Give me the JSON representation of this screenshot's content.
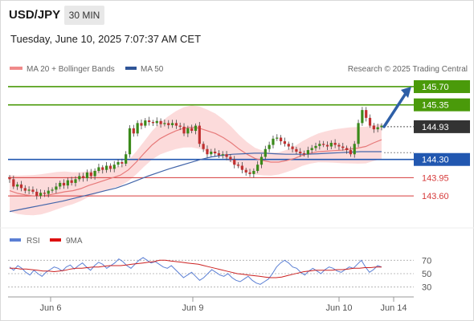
{
  "header": {
    "symbol": "USD/JPY",
    "interval": "30 MIN",
    "datetime": "Tuesday, June 10, 2025 7:07:37 AM CET"
  },
  "legend": {
    "ma20_label": "MA 20 + Bollinger Bands",
    "ma50_label": "MA 50",
    "credit": "Research © 2025 Trading Central",
    "rsi_label": "RSI",
    "rsi9ma_label": "9MA"
  },
  "colors": {
    "green": "#4a9a0a",
    "blue": "#2157b0",
    "red": "#d63a3a",
    "dark": "#333333",
    "band": "#fbd5d5",
    "arrow": "#2e5fa7",
    "ma20": "#e77a7a",
    "ma50": "#4466aa",
    "candle_up": "#3a8a1a",
    "candle_down": "#c03030",
    "rsi": "#5b7fd4",
    "rsi_ma": "#cc2020"
  },
  "chart_data": {
    "type": "candlestick",
    "price_range": [
      143.0,
      145.9
    ],
    "levels": [
      {
        "value": 145.7,
        "label": "145.70",
        "style": "green-box"
      },
      {
        "value": 145.35,
        "label": "145.35",
        "style": "green-box"
      },
      {
        "value": 144.93,
        "label": "144.93",
        "style": "dark-box"
      },
      {
        "value": 144.3,
        "label": "144.30",
        "style": "blue-box"
      },
      {
        "value": 143.95,
        "label": "143.95",
        "style": "red-text"
      },
      {
        "value": 143.6,
        "label": "143.60",
        "style": "red-text"
      }
    ],
    "x_labels": [
      "Jun 6",
      "Jun 9",
      "Jun 10",
      "Jun 14"
    ],
    "close": [
      143.92,
      143.78,
      143.82,
      143.75,
      143.7,
      143.72,
      143.68,
      143.6,
      143.66,
      143.64,
      143.7,
      143.72,
      143.78,
      143.85,
      143.8,
      143.9,
      143.85,
      143.92,
      143.98,
      143.94,
      144.05,
      143.98,
      144.08,
      144.15,
      144.1,
      144.18,
      144.12,
      144.2,
      144.25,
      144.22,
      144.4,
      144.9,
      144.8,
      145.0,
      144.95,
      145.05,
      145.02,
      145.0,
      145.04,
      144.98,
      145.0,
      144.96,
      145.0,
      144.95,
      144.93,
      144.8,
      144.9,
      144.85,
      144.95,
      144.6,
      144.5,
      144.4,
      144.45,
      144.42,
      144.38,
      144.4,
      144.35,
      144.3,
      144.2,
      144.18,
      144.1,
      144.05,
      144.02,
      144.08,
      144.2,
      144.35,
      144.5,
      144.58,
      144.7,
      144.72,
      144.65,
      144.6,
      144.55,
      144.5,
      144.45,
      144.42,
      144.4,
      144.48,
      144.52,
      144.56,
      144.6,
      144.58,
      144.55,
      144.62,
      144.58,
      144.55,
      144.52,
      144.48,
      144.4,
      144.6,
      145.0,
      145.25,
      145.1,
      144.95,
      144.88,
      144.92,
      144.95
    ],
    "ma20": [
      143.7,
      143.65,
      143.62,
      143.6,
      143.6,
      143.62,
      143.65,
      143.68,
      143.7,
      143.74,
      143.8,
      143.85,
      143.9,
      143.95,
      144.0,
      144.1,
      144.25,
      144.42,
      144.58,
      144.7,
      144.78,
      144.85,
      144.9,
      144.92,
      144.9,
      144.85,
      144.8,
      144.72,
      144.62,
      144.5,
      144.4,
      144.32,
      144.28,
      144.25,
      144.25,
      144.28,
      144.32,
      144.38,
      144.42,
      144.45,
      144.46,
      144.47,
      144.48,
      144.5,
      144.52,
      144.55,
      144.62,
      144.68
    ],
    "ma50": [
      143.3,
      143.34,
      143.38,
      143.42,
      143.46,
      143.5,
      143.55,
      143.6,
      143.65,
      143.7,
      143.75,
      143.82,
      143.9,
      143.98,
      144.05,
      144.12,
      144.18,
      144.24,
      144.3,
      144.35,
      144.38,
      144.4,
      144.41,
      144.42,
      144.42,
      144.41,
      144.4,
      144.4,
      144.4,
      144.41,
      144.42,
      144.43,
      144.44,
      144.45,
      144.45,
      144.45
    ],
    "rsi_range": [
      20,
      80
    ],
    "rsi_ticks": [
      70,
      50,
      30
    ],
    "rsi": [
      60,
      55,
      62,
      58,
      52,
      48,
      55,
      50,
      46,
      52,
      56,
      60,
      58,
      54,
      60,
      63,
      57,
      62,
      66,
      60,
      55,
      62,
      67,
      64,
      58,
      62,
      66,
      72,
      68,
      62,
      58,
      64,
      70,
      74,
      70,
      66,
      68,
      64,
      60,
      58,
      62,
      56,
      50,
      44,
      48,
      52,
      46,
      40,
      44,
      50,
      56,
      52,
      48,
      46,
      50,
      44,
      40,
      38,
      42,
      46,
      40,
      36,
      34,
      38,
      42,
      50,
      60,
      66,
      70,
      66,
      60,
      58,
      52,
      48,
      54,
      58,
      54,
      50,
      56,
      60,
      58,
      54,
      52,
      56,
      60,
      58,
      64,
      70,
      60,
      52,
      56,
      62,
      60
    ],
    "rsi_ma": [
      58,
      58,
      57,
      57,
      56,
      55,
      54,
      54,
      53,
      54,
      55,
      57,
      58,
      58,
      59,
      60,
      60,
      61,
      62,
      62,
      62,
      63,
      64,
      65,
      66,
      67,
      68,
      70,
      70,
      69,
      68,
      67,
      66,
      65,
      64,
      62,
      60,
      58,
      56,
      54,
      52,
      50,
      49,
      48,
      47,
      46,
      45,
      44,
      44,
      45,
      47,
      49,
      51,
      53,
      54,
      55,
      55,
      55,
      55,
      56,
      56,
      57,
      58,
      58,
      59,
      59,
      60,
      60
    ]
  }
}
